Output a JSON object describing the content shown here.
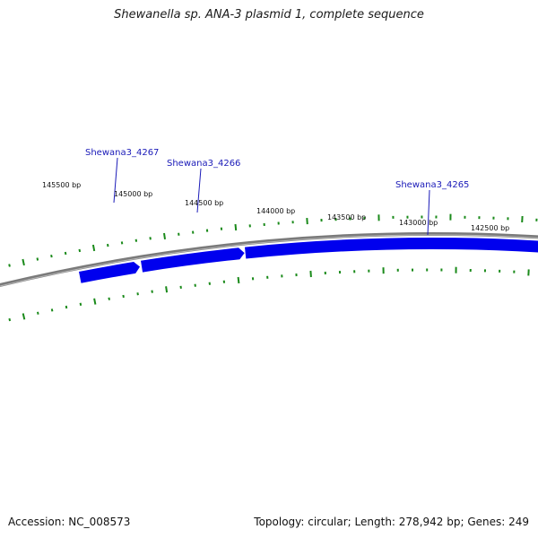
{
  "title": "Shewanella sp. ANA-3 plasmid 1, complete sequence",
  "footer": {
    "accession": "Accession: NC_008573",
    "summary": "Topology: circular; Length: 278,942 bp; Genes: 249"
  },
  "colors": {
    "gene": "#0000ee",
    "backbone": "#7a7a7a",
    "ticks": "#1a8a1a",
    "label": "#1a1ab8"
  },
  "ticks": [
    {
      "label": "145500 bp",
      "bp": 145500
    },
    {
      "label": "145000 bp",
      "bp": 145000
    },
    {
      "label": "144500 bp",
      "bp": 144500
    },
    {
      "label": "144000 bp",
      "bp": 144000
    },
    {
      "label": "143500 bp",
      "bp": 143500
    },
    {
      "label": "143000 bp",
      "bp": 143000
    },
    {
      "label": "142500 bp",
      "bp": 142500
    }
  ],
  "genes": [
    {
      "name": "Shewana3_4267"
    },
    {
      "name": "Shewana3_4266"
    },
    {
      "name": "Shewana3_4265"
    }
  ]
}
